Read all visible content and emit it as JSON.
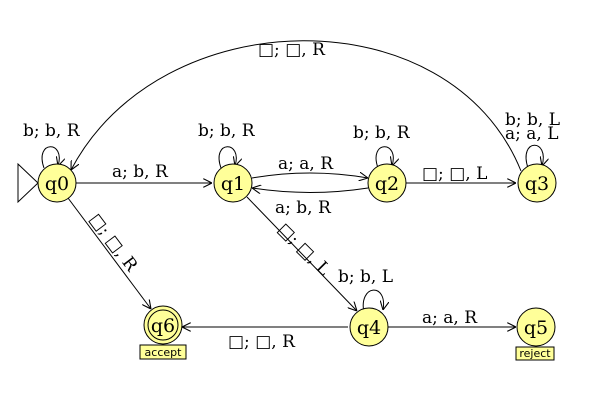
{
  "states": [
    {
      "id": "q0",
      "label": "q0",
      "start": true
    },
    {
      "id": "q1",
      "label": "q1"
    },
    {
      "id": "q2",
      "label": "q2"
    },
    {
      "id": "q3",
      "label": "q3"
    },
    {
      "id": "q4",
      "label": "q4"
    },
    {
      "id": "q5",
      "label": "q5",
      "tag": "reject"
    },
    {
      "id": "q6",
      "label": "q6",
      "accepting": true,
      "tag": "accept"
    }
  ],
  "transitions": [
    {
      "id": "t-q0-q0",
      "from": "q0",
      "to": "q0",
      "label": "b; b, R"
    },
    {
      "id": "t-q0-q1",
      "from": "q0",
      "to": "q1",
      "label": "a; b, R"
    },
    {
      "id": "t-q0-q6",
      "from": "q0",
      "to": "q6",
      "label": "□; □, R"
    },
    {
      "id": "t-q1-q1",
      "from": "q1",
      "to": "q1",
      "label": "b; b, R"
    },
    {
      "id": "t-q1-q2",
      "from": "q1",
      "to": "q2",
      "label": "a; a, R"
    },
    {
      "id": "t-q2-q1",
      "from": "q2",
      "to": "q1",
      "label": ""
    },
    {
      "id": "t-q1-q4-a",
      "from": "q1",
      "to": "q4",
      "label": "a; b, R"
    },
    {
      "id": "t-q1-q4-blank",
      "from": "q1",
      "to": "q4",
      "label": "□; □, L"
    },
    {
      "id": "t-q2-q2",
      "from": "q2",
      "to": "q2",
      "label": "b; b, R"
    },
    {
      "id": "t-q2-q3",
      "from": "q2",
      "to": "q3",
      "label": "□; □, L"
    },
    {
      "id": "t-q3-q3-b",
      "from": "q3",
      "to": "q3",
      "label": "b; b, L"
    },
    {
      "id": "t-q3-q3-a",
      "from": "q3",
      "to": "q3",
      "label": "a; a, L"
    },
    {
      "id": "t-q3-q0",
      "from": "q3",
      "to": "q0",
      "label": "□; □, R"
    },
    {
      "id": "t-q4-q4",
      "from": "q4",
      "to": "q4",
      "label": "b; b, L"
    },
    {
      "id": "t-q4-q5",
      "from": "q4",
      "to": "q5",
      "label": "a; a, R"
    },
    {
      "id": "t-q4-q6",
      "from": "q4",
      "to": "q6",
      "label": "□; □, R"
    }
  ]
}
